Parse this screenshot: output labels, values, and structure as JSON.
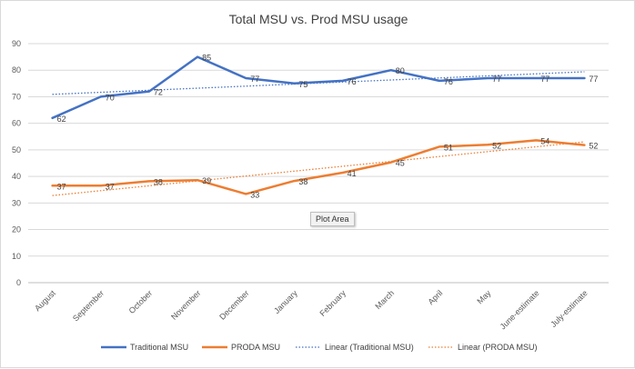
{
  "chart_data": {
    "type": "line",
    "title": "Total MSU vs. Prod MSU usage",
    "categories": [
      "August",
      "September",
      "October",
      "November",
      "December",
      "January",
      "February",
      "March",
      "April",
      "May",
      "June-estimate",
      "July-estimate"
    ],
    "ylim": [
      0,
      90
    ],
    "yticks": [
      0,
      10,
      20,
      30,
      40,
      50,
      60,
      70,
      80,
      90
    ],
    "grid": true,
    "legend_position": "bottom",
    "series": [
      {
        "name": "Traditional MSU",
        "color": "#4472c4",
        "values": [
          62,
          70,
          72,
          85,
          77,
          75,
          76,
          80,
          76,
          77,
          77,
          77
        ],
        "labels": [
          "62",
          "70",
          "72",
          "85",
          "77",
          "75",
          "76",
          "80",
          "76",
          "77",
          "77",
          "77"
        ]
      },
      {
        "name": "PRODA MSU",
        "color": "#ed7d31",
        "values": [
          36.5,
          36.5,
          38.2,
          38.6,
          33.4,
          38.3,
          41.4,
          45.3,
          51.2,
          51.9,
          53.6,
          51.8
        ],
        "labels": [
          "37",
          "37",
          "38",
          "39",
          "33",
          "38",
          "41",
          "45",
          "51",
          "52",
          "54",
          "52"
        ]
      }
    ],
    "trendlines": [
      {
        "name": "Linear (Traditional MSU)",
        "color": "#4472c4",
        "start": 70.9,
        "end": 79.4
      },
      {
        "name": "Linear (PRODA MSU)",
        "color": "#ed7d31",
        "start": 32.8,
        "end": 53.0
      }
    ]
  },
  "tooltip": {
    "label": "Plot Area"
  }
}
